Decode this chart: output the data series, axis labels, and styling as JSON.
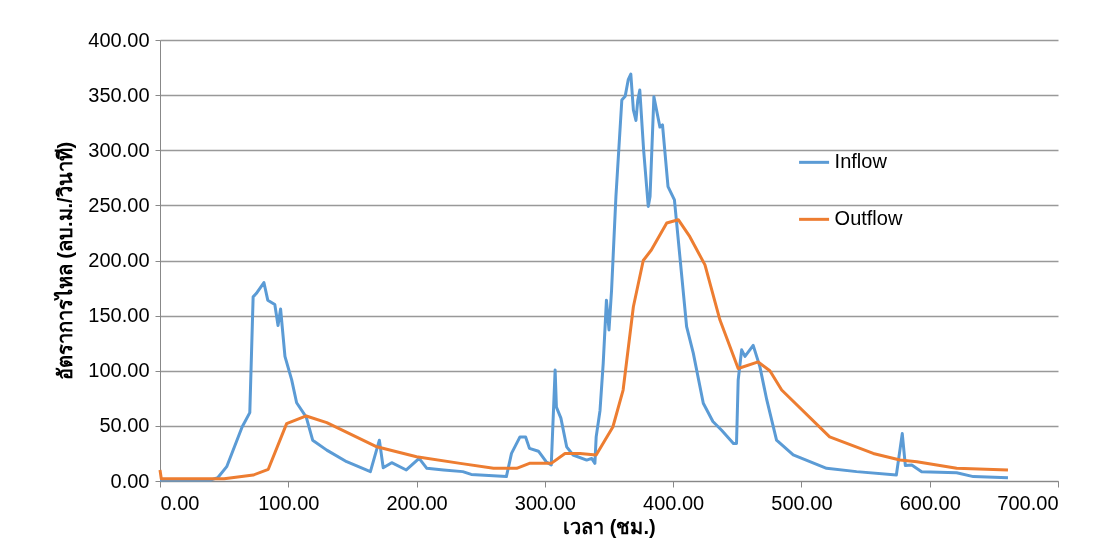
{
  "chart_data": {
    "type": "line",
    "xlabel": "เวลา (ชม.)",
    "ylabel": "อัตราการไหล (ลบ.ม./วินาที)",
    "xlim": [
      0,
      700
    ],
    "xticks": [
      {
        "value": 0,
        "label": "0.00"
      },
      {
        "value": 100,
        "label": "100.00"
      },
      {
        "value": 200,
        "label": "200.00"
      },
      {
        "value": 300,
        "label": "300.00"
      },
      {
        "value": 400,
        "label": "400.00"
      },
      {
        "value": 500,
        "label": "500.00"
      },
      {
        "value": 600,
        "label": "600.00"
      },
      {
        "value": 700,
        "label": "700.00"
      }
    ],
    "ylim": [
      0,
      400
    ],
    "yticks": [
      {
        "value": 0,
        "label": "0.00"
      },
      {
        "value": 50,
        "label": "50.00"
      },
      {
        "value": 100,
        "label": "100.00"
      },
      {
        "value": 150,
        "label": "150.00"
      },
      {
        "value": 200,
        "label": "200.00"
      },
      {
        "value": 250,
        "label": "250.00"
      },
      {
        "value": 300,
        "label": "300.00"
      },
      {
        "value": 350,
        "label": "350.00"
      },
      {
        "value": 400,
        "label": "400.00"
      }
    ],
    "grid": "y",
    "legend": "right",
    "marker": "none",
    "line_style": "solid",
    "series": [
      {
        "name": "Inflow",
        "color": "#5b9bd5",
        "x": [
          0,
          40,
          45,
          52,
          56,
          64,
          70,
          72.6,
          75,
          81,
          84,
          89.5,
          92,
          94,
          97.4,
          102.6,
          106.5,
          114,
          119,
          130,
          145.5,
          164,
          171,
          174,
          180.6,
          192,
          202,
          208,
          221,
          236,
          242.6,
          270,
          274,
          280.6,
          285,
          288,
          295,
          301,
          305,
          308,
          309,
          312.5,
          317,
          322,
          332.6,
          336.5,
          339,
          340,
          343,
          345.5,
          348,
          350,
          352,
          355.4,
          360,
          362.6,
          365,
          367,
          369,
          371,
          372.4,
          374,
          377,
          380.6,
          382,
          385,
          389.7,
          391.7,
          396,
          401,
          410.5,
          415.7,
          423.5,
          431,
          437.8,
          447,
          449.4,
          450.7,
          453.4,
          456,
          462.4,
          467.6,
          473,
          480.6,
          493.6,
          519.6,
          543,
          574,
          578.6,
          581,
          586,
          593.7,
          621,
          634,
          661
        ],
        "values": [
          1,
          1,
          3,
          13,
          25,
          49,
          62,
          167,
          170,
          180,
          164,
          160,
          141,
          156,
          113,
          92,
          71,
          58,
          37,
          28,
          17.5,
          8.5,
          37,
          12,
          16.6,
          10,
          20.5,
          11.5,
          10,
          8.5,
          6,
          4,
          25,
          40,
          40,
          29.6,
          27,
          17.5,
          14.5,
          100.7,
          67,
          57,
          31,
          23.6,
          19,
          20.5,
          16,
          40,
          64,
          107,
          164,
          137,
          173,
          258,
          345.6,
          349,
          364,
          369,
          336.5,
          327,
          345,
          354.6,
          300,
          249,
          258,
          348.6,
          321,
          323,
          267,
          255,
          140,
          116,
          70.5,
          54,
          46,
          34,
          34,
          91.6,
          119,
          113,
          123,
          103.7,
          73.5,
          37,
          23.6,
          11.5,
          8.5,
          5.4,
          43,
          14,
          14.5,
          8.5,
          7.5,
          4,
          3
        ]
      },
      {
        "name": "Outflow",
        "color": "#ed7d31",
        "x": [
          0,
          1,
          50,
          72.7,
          84.4,
          98.7,
          114,
          130,
          169,
          200,
          234,
          260,
          278,
          288,
          305,
          315.7,
          327.4,
          340,
          353,
          361,
          369,
          376.7,
          383,
          395,
          404,
          413,
          424.8,
          436.5,
          450.7,
          466.3,
          475.4,
          484.6,
          522,
          556,
          576.8,
          590,
          621,
          661
        ],
        "values": [
          10,
          2,
          2,
          5.4,
          10.6,
          52,
          59,
          53,
          31,
          22,
          16,
          11.5,
          11.5,
          16,
          16,
          25,
          25,
          23.6,
          49,
          82.5,
          158,
          200,
          209.5,
          234,
          237,
          221.6,
          196,
          146,
          102,
          108,
          100,
          82.5,
          40,
          25,
          19,
          17.5,
          11.5,
          10
        ]
      }
    ]
  }
}
